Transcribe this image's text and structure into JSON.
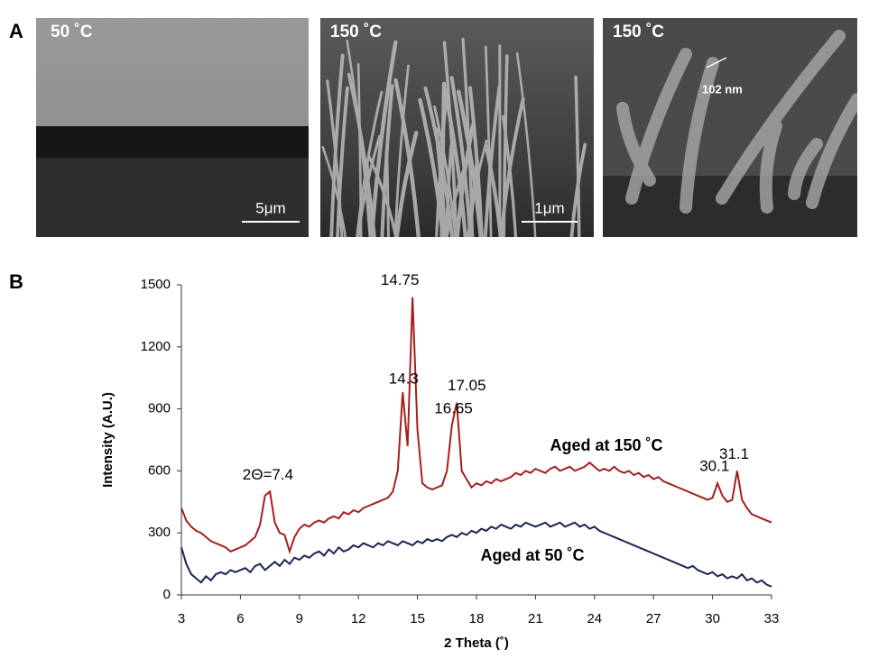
{
  "figure": {
    "panel_a": {
      "label": "A",
      "images": [
        {
          "label": "50 ˚C",
          "scale_bar": "5μm"
        },
        {
          "label": "150 ˚C",
          "scale_bar": "1μm"
        },
        {
          "label": "150 ˚C",
          "measure": "102 nm"
        }
      ]
    },
    "panel_b": {
      "label": "B"
    }
  },
  "chart_data": {
    "type": "line",
    "xlabel": "2 Theta (˚)",
    "ylabel": "Intensity (A.U.)",
    "xlim": [
      3,
      33
    ],
    "xticks": [
      3,
      6,
      9,
      12,
      15,
      18,
      21,
      24,
      27,
      30,
      33
    ],
    "ylim": [
      0,
      1500
    ],
    "yticks": [
      0,
      300,
      600,
      900,
      1200,
      1500
    ],
    "grid": false,
    "x": [
      3,
      3.25,
      3.5,
      3.75,
      4,
      4.25,
      4.5,
      4.75,
      5,
      5.25,
      5.5,
      5.75,
      6,
      6.25,
      6.5,
      6.75,
      7,
      7.25,
      7.5,
      7.75,
      8,
      8.25,
      8.5,
      8.75,
      9,
      9.25,
      9.5,
      9.75,
      10,
      10.25,
      10.5,
      10.75,
      11,
      11.25,
      11.5,
      11.75,
      12,
      12.25,
      12.5,
      12.75,
      13,
      13.25,
      13.5,
      13.75,
      14,
      14.25,
      14.5,
      14.75,
      15,
      15.25,
      15.5,
      15.75,
      16,
      16.25,
      16.5,
      16.75,
      17,
      17.25,
      17.5,
      17.75,
      18,
      18.25,
      18.5,
      18.75,
      19,
      19.25,
      19.5,
      19.75,
      20,
      20.25,
      20.5,
      20.75,
      21,
      21.25,
      21.5,
      21.75,
      22,
      22.25,
      22.5,
      22.75,
      23,
      23.25,
      23.5,
      23.75,
      24,
      24.25,
      24.5,
      24.75,
      25,
      25.25,
      25.5,
      25.75,
      26,
      26.25,
      26.5,
      26.75,
      27,
      27.25,
      27.5,
      27.75,
      28,
      28.25,
      28.5,
      28.75,
      29,
      29.25,
      29.5,
      29.75,
      30,
      30.25,
      30.5,
      30.75,
      31,
      31.25,
      31.5,
      31.75,
      32,
      32.25,
      32.5,
      32.75,
      33
    ],
    "series": [
      {
        "name": "Aged at 150 ˚C",
        "color": "#a61e1e",
        "values": [
          420,
          360,
          330,
          310,
          300,
          280,
          260,
          250,
          240,
          230,
          210,
          220,
          230,
          240,
          260,
          280,
          340,
          480,
          500,
          350,
          300,
          290,
          210,
          280,
          320,
          340,
          330,
          350,
          360,
          350,
          370,
          380,
          370,
          400,
          390,
          410,
          400,
          420,
          430,
          440,
          450,
          460,
          470,
          500,
          600,
          980,
          720,
          1440,
          800,
          540,
          520,
          510,
          520,
          530,
          600,
          820,
          930,
          600,
          560,
          520,
          540,
          530,
          550,
          540,
          560,
          550,
          560,
          570,
          590,
          580,
          600,
          590,
          610,
          600,
          590,
          610,
          620,
          600,
          610,
          620,
          600,
          610,
          620,
          640,
          620,
          600,
          610,
          600,
          620,
          600,
          590,
          600,
          580,
          590,
          570,
          580,
          560,
          570,
          550,
          540,
          530,
          520,
          510,
          500,
          490,
          480,
          470,
          460,
          470,
          540,
          480,
          450,
          460,
          600,
          460,
          420,
          390,
          380,
          370,
          360,
          350
        ]
      },
      {
        "name": "Aged at 50 ˚C",
        "color": "#1b2452",
        "values": [
          230,
          150,
          100,
          80,
          60,
          90,
          70,
          100,
          110,
          100,
          120,
          110,
          120,
          130,
          110,
          140,
          150,
          120,
          140,
          160,
          140,
          170,
          150,
          180,
          170,
          190,
          180,
          200,
          210,
          190,
          220,
          200,
          230,
          210,
          220,
          240,
          230,
          250,
          240,
          230,
          250,
          240,
          260,
          250,
          240,
          260,
          250,
          240,
          260,
          250,
          270,
          260,
          270,
          260,
          280,
          290,
          280,
          300,
          290,
          310,
          300,
          320,
          310,
          330,
          320,
          340,
          330,
          320,
          340,
          330,
          350,
          340,
          330,
          340,
          350,
          330,
          340,
          350,
          330,
          340,
          350,
          330,
          340,
          320,
          330,
          310,
          300,
          290,
          280,
          270,
          260,
          250,
          240,
          230,
          220,
          210,
          200,
          190,
          180,
          170,
          160,
          150,
          140,
          130,
          140,
          120,
          110,
          100,
          110,
          90,
          100,
          80,
          90,
          80,
          100,
          70,
          80,
          60,
          70,
          50,
          40
        ]
      }
    ],
    "annotations": [
      {
        "text": "2Θ=7.4",
        "x": 7.4
      },
      {
        "text": "14.3",
        "x": 14.3
      },
      {
        "text": "14.75",
        "x": 14.75
      },
      {
        "text": "16.65",
        "x": 16.65
      },
      {
        "text": "17.05",
        "x": 17.05
      },
      {
        "text": "30.1",
        "x": 30.1
      },
      {
        "text": "31.1",
        "x": 31.1
      }
    ]
  }
}
